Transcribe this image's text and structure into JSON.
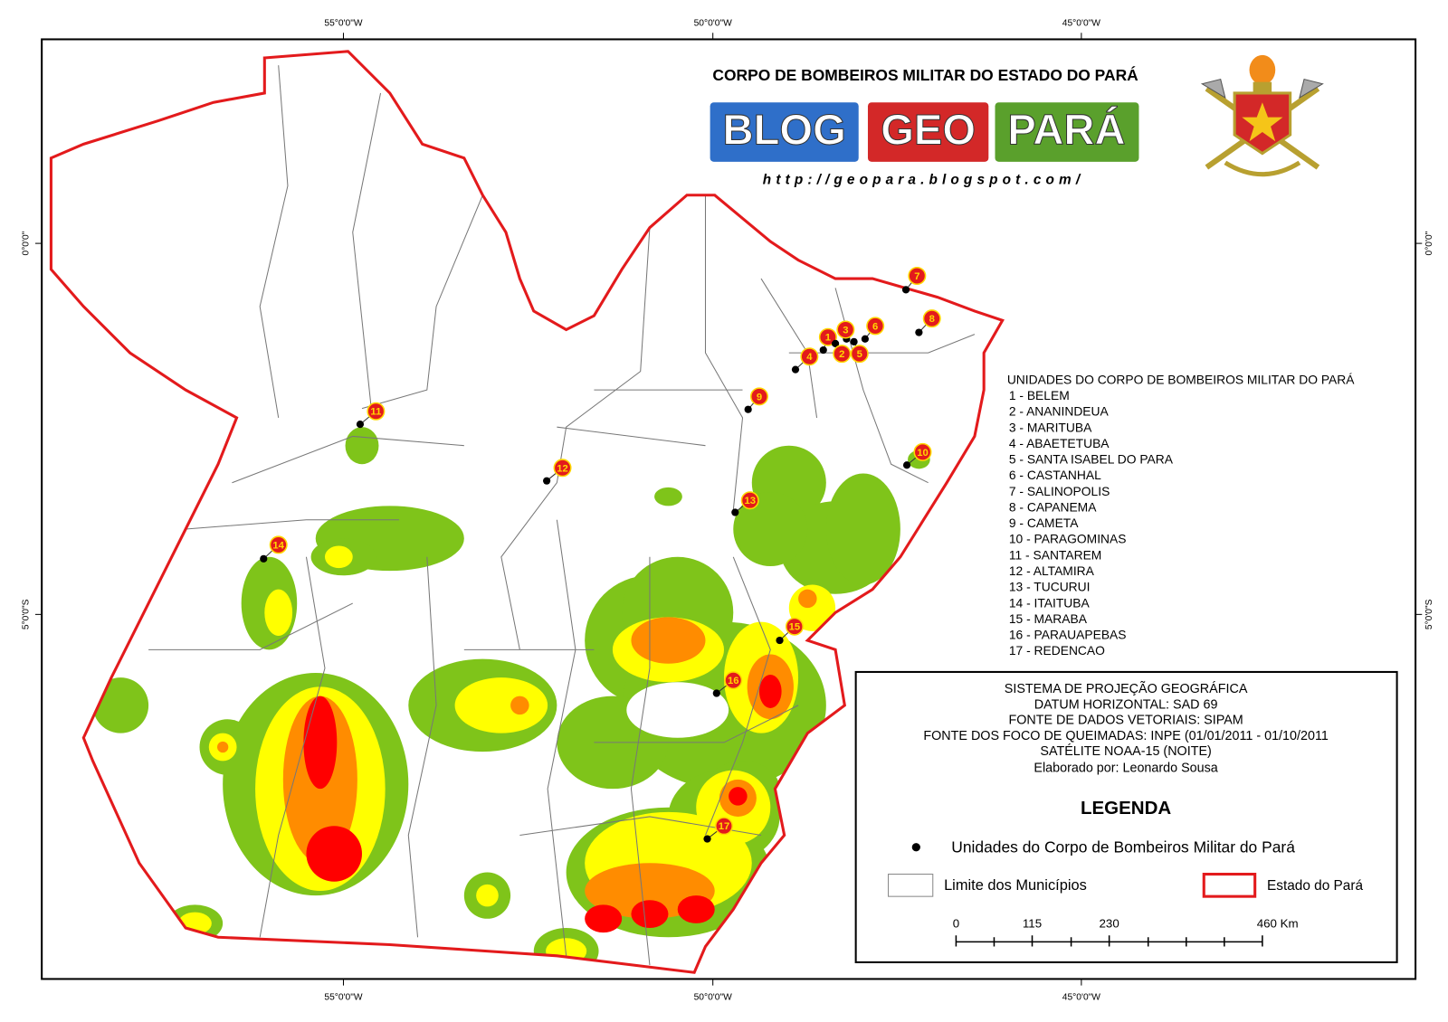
{
  "header": {
    "title": "CORPO DE BOMBEIROS MILITAR DO ESTADO DO PARÁ",
    "logo": [
      "BLOG",
      "GEO",
      "PARÁ"
    ],
    "url": "http://geopara.blogspot.com/"
  },
  "coordinates": {
    "top": [
      "55°0'0\"W",
      "50°0'0\"W",
      "45°0'0\"W"
    ],
    "bottom": [
      "55°0'0\"W",
      "50°0'0\"W",
      "45°0'0\"W"
    ],
    "left": [
      "0°0'0\"",
      "5°0'0\"S"
    ],
    "right": [
      "0°0'0\"",
      "5°0'0\"S"
    ]
  },
  "map_markers": [
    "1",
    "2",
    "3",
    "4",
    "5",
    "6",
    "7",
    "8",
    "9",
    "10",
    "11",
    "12",
    "13",
    "14",
    "15",
    "16",
    "17"
  ],
  "units": {
    "title": "UNIDADES DO CORPO DE BOMBEIROS MILITAR DO PARÁ",
    "items": [
      "1 - BELEM",
      "2 - ANANINDEUA",
      "3 - MARITUBA",
      "4 - ABAETETUBA",
      "5 - SANTA ISABEL DO PARA",
      "6 - CASTANHAL",
      "7 - SALINOPOLIS",
      "8 - CAPANEMA",
      "9 - CAMETA",
      "10 - PARAGOMINAS",
      "11 - SANTAREM",
      "12 - ALTAMIRA",
      "13 - TUCURUI",
      "14 - ITAITUBA",
      "15 - MARABA",
      "16 - PARAUAPEBAS",
      "17 - REDENCAO"
    ]
  },
  "info": {
    "lines": [
      "SISTEMA DE PROJEÇÃO GEOGRÁFICA",
      "DATUM HORIZONTAL: SAD 69",
      "FONTE DE DADOS VETORIAIS: SIPAM",
      "FONTE DOS FOCO DE QUEIMADAS: INPE (01/01/2011 - 01/10/2011",
      "SATÉLITE NOAA-15 (NOITE)",
      "Elaborado por: Leonardo Sousa"
    ],
    "legend_title": "LEGENDA",
    "legend": [
      "Unidades do Corpo de Bombeiros Militar do Pará",
      "Limite dos Municípios",
      "Estado do Pará"
    ],
    "scale": [
      "0",
      "115",
      "230",
      "460 Km"
    ]
  }
}
